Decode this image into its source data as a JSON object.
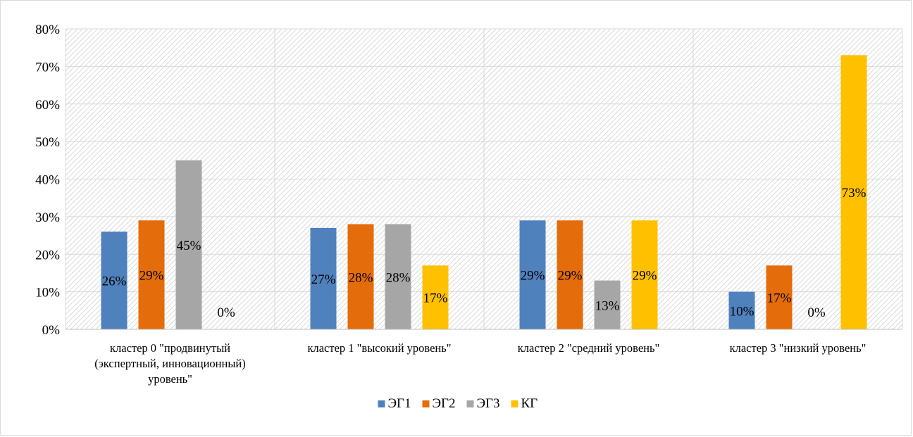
{
  "chart_data": {
    "type": "bar",
    "categories": [
      [
        "кластер 0 \"продвинутый",
        "(экспертный, инновационный)",
        "уровень\""
      ],
      [
        "кластер 1 \"высокий уровень\""
      ],
      [
        "кластер 2 \"средний уровень\""
      ],
      [
        "кластер 3 \"низкий уровень\""
      ]
    ],
    "series": [
      {
        "name": "ЭГ1",
        "color": "#4f81bd",
        "values": [
          26,
          27,
          29,
          10
        ],
        "labels": [
          "26%",
          "27%",
          "29%",
          "10%"
        ]
      },
      {
        "name": "ЭГ2",
        "color": "#e46c0a",
        "values": [
          29,
          28,
          29,
          17
        ],
        "labels": [
          "29%",
          "28%",
          "29%",
          "17%"
        ]
      },
      {
        "name": "ЭГ3",
        "color": "#a6a6a6",
        "values": [
          45,
          28,
          13,
          0
        ],
        "labels": [
          "45%",
          "28%",
          "13%",
          "0%"
        ]
      },
      {
        "name": "КГ",
        "color": "#ffc000",
        "values": [
          0,
          17,
          29,
          73
        ],
        "labels": [
          "0%",
          "17%",
          "29%",
          "73%"
        ]
      }
    ],
    "ylim": [
      0,
      80
    ],
    "yticks": [
      "0%",
      "10%",
      "20%",
      "30%",
      "40%",
      "50%",
      "60%",
      "70%",
      "80%"
    ],
    "grid": true,
    "legend_position": "bottom",
    "title": "",
    "xlabel": "",
    "ylabel": ""
  }
}
